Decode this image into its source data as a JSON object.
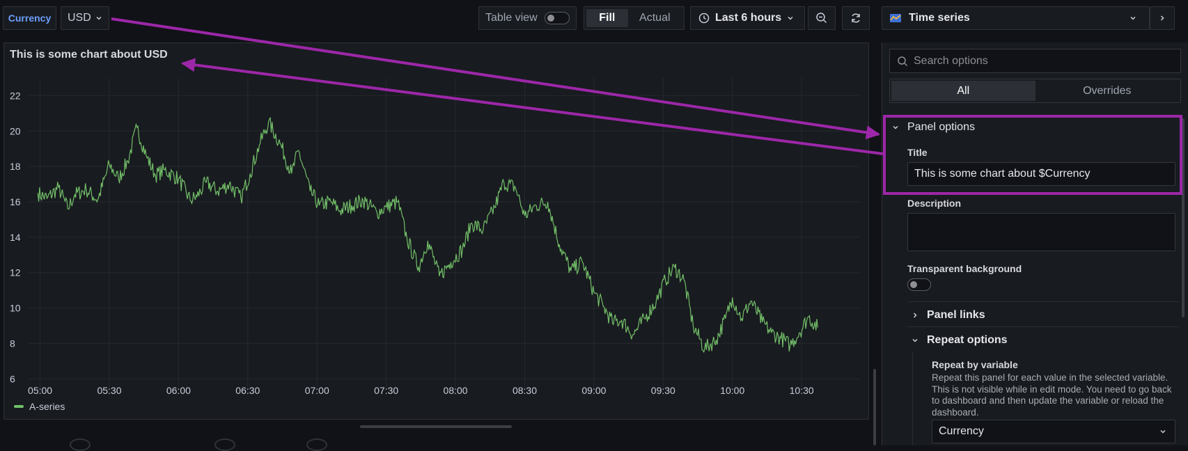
{
  "topbar": {
    "variable_label": "Currency",
    "variable_value": "USD",
    "table_view_label": "Table view",
    "fill_label": "Fill",
    "actual_label": "Actual",
    "time_range": "Last 6 hours"
  },
  "visualization": {
    "name": "Time series"
  },
  "panel": {
    "title": "This is some chart about USD",
    "legend_series": "A-series"
  },
  "chart_data": {
    "type": "line",
    "title": "This is some chart about USD",
    "x_ticks": [
      "05:00",
      "05:30",
      "06:00",
      "06:30",
      "07:00",
      "07:30",
      "08:00",
      "08:30",
      "09:00",
      "09:30",
      "10:00",
      "10:30"
    ],
    "y_ticks": [
      6,
      8,
      10,
      12,
      14,
      16,
      18,
      20,
      22
    ],
    "ylim": [
      5.5,
      23
    ],
    "series": [
      {
        "name": "A-series",
        "color": "#73bf69",
        "x": [
          "04:59",
          "05:03",
          "05:08",
          "05:12",
          "05:15",
          "05:20",
          "05:25",
          "05:30",
          "05:34",
          "05:38",
          "05:42",
          "05:46",
          "05:50",
          "05:54",
          "06:00",
          "06:05",
          "06:08",
          "06:12",
          "06:17",
          "06:22",
          "06:27",
          "06:31",
          "06:35",
          "06:39",
          "06:44",
          "06:49",
          "06:52",
          "06:57",
          "07:01",
          "07:06",
          "07:10",
          "07:15",
          "07:20",
          "07:26",
          "07:30",
          "07:35",
          "07:39",
          "07:44",
          "07:48",
          "07:53",
          "07:58",
          "08:03",
          "08:07",
          "08:12",
          "08:17",
          "08:21",
          "08:26",
          "08:30",
          "08:35",
          "08:40",
          "08:45",
          "08:50",
          "08:55",
          "09:00",
          "09:04",
          "09:08",
          "09:12",
          "09:17",
          "09:22",
          "09:27",
          "09:31",
          "09:35",
          "09:39",
          "09:43",
          "09:48",
          "09:53",
          "09:57",
          "10:00",
          "10:04",
          "10:08",
          "10:13",
          "10:17",
          "10:21",
          "10:25",
          "10:29",
          "10:33",
          "10:37",
          "10:41",
          "10:45",
          "10:50",
          "10:54"
        ],
        "values": [
          16.5,
          16.2,
          16.8,
          15.6,
          16.4,
          16.7,
          16.1,
          18.1,
          17.3,
          18.3,
          20.2,
          18.6,
          17.5,
          17.8,
          17.3,
          16.1,
          16.3,
          17.1,
          16.6,
          17.0,
          16.2,
          17.6,
          19.2,
          20.5,
          19.3,
          17.6,
          18.9,
          16.6,
          15.8,
          16.0,
          15.5,
          15.8,
          16.1,
          15.4,
          15.7,
          16.0,
          13.9,
          12.3,
          13.8,
          11.8,
          12.6,
          13.3,
          14.8,
          14.4,
          15.7,
          17.1,
          16.8,
          15.2,
          15.8,
          16.0,
          13.6,
          12.1,
          12.6,
          10.9,
          10.1,
          9.2,
          9.3,
          8.5,
          9.4,
          10.4,
          11.6,
          12.3,
          11.6,
          9.0,
          7.7,
          8.2,
          9.4,
          10.6,
          9.4,
          10.4,
          9.2,
          8.6,
          8.3,
          7.9,
          8.6,
          9.5,
          8.9,
          null,
          null,
          null,
          null
        ]
      }
    ]
  },
  "options": {
    "search_placeholder": "Search options",
    "tab_all": "All",
    "tab_overrides": "Overrides",
    "panel_options_label": "Panel options",
    "title_label": "Title",
    "title_value": "This is some chart about $Currency",
    "description_label": "Description",
    "description_value": "",
    "transparent_label": "Transparent background",
    "panel_links_label": "Panel links",
    "repeat_options_label": "Repeat options",
    "repeat_by_label": "Repeat by variable",
    "repeat_by_desc": "Repeat this panel for each value in the selected variable. This is not visible while in edit mode. You need to go back to dashboard and then update the variable or reload the dashboard.",
    "repeat_value": "Currency"
  },
  "colors": {
    "background": "#111217",
    "panel": "#181b1f",
    "series": "#73bf69",
    "annotation": "#9c27a8",
    "variable_label": "#6e9fff"
  }
}
